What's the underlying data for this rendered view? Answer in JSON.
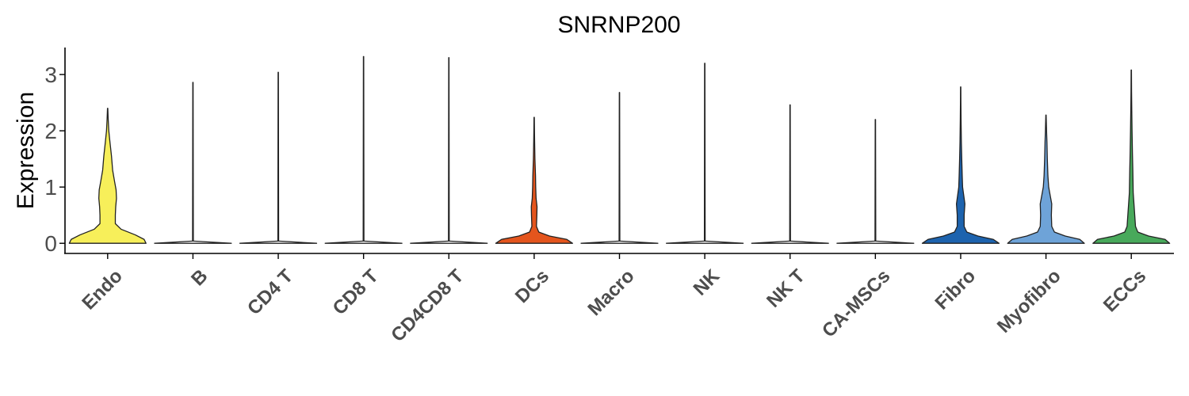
{
  "chart_data": {
    "type": "violin",
    "title": "SNRNP200",
    "xlabel": "",
    "ylabel": "Expression",
    "ylim": [
      -0.18,
      3.48
    ],
    "yticks": [
      "0",
      "1",
      "2",
      "3"
    ],
    "grid": false,
    "legend": "none",
    "categories": [
      "Endo",
      "B",
      "CD4 T",
      "CD8 T",
      "CD4CD8 T",
      "DCs",
      "Macro",
      "NK",
      "NK T",
      "CA-MSCs",
      "Fibro",
      "Myofibro",
      "ECCs"
    ],
    "colors": [
      "#f7ef5a",
      "#ffffff",
      "#ffffff",
      "#ffffff",
      "#ffffff",
      "#e4551d",
      "#ffffff",
      "#ffffff",
      "#ffffff",
      "#ffffff",
      "#1d63ae",
      "#6ea3d8",
      "#48a95b"
    ],
    "max_values": [
      2.4,
      2.86,
      3.04,
      3.32,
      3.3,
      2.24,
      2.68,
      3.2,
      2.46,
      2.2,
      2.78,
      2.28,
      3.08
    ],
    "violins": [
      {
        "name": "Endo",
        "profile": [
          [
            0,
            1.0
          ],
          [
            0.07,
            0.95
          ],
          [
            0.15,
            0.72
          ],
          [
            0.25,
            0.35
          ],
          [
            0.35,
            0.2
          ],
          [
            0.5,
            0.2
          ],
          [
            0.65,
            0.21
          ],
          [
            0.8,
            0.23
          ],
          [
            0.95,
            0.22
          ],
          [
            1.1,
            0.18
          ],
          [
            1.3,
            0.13
          ],
          [
            1.55,
            0.1
          ],
          [
            1.8,
            0.06
          ],
          [
            2.0,
            0.03
          ],
          [
            2.2,
            0.015
          ],
          [
            2.4,
            0.004
          ]
        ]
      },
      {
        "name": "B",
        "profile": [
          [
            0,
            1.0
          ],
          [
            0.04,
            0.01
          ],
          [
            2.86,
            0.004
          ]
        ]
      },
      {
        "name": "CD4 T",
        "profile": [
          [
            0,
            1.0
          ],
          [
            0.04,
            0.01
          ],
          [
            3.04,
            0.004
          ]
        ]
      },
      {
        "name": "CD8 T",
        "profile": [
          [
            0,
            1.0
          ],
          [
            0.04,
            0.01
          ],
          [
            3.32,
            0.004
          ]
        ]
      },
      {
        "name": "CD4CD8 T",
        "profile": [
          [
            0,
            1.0
          ],
          [
            0.04,
            0.01
          ],
          [
            3.3,
            0.004
          ]
        ]
      },
      {
        "name": "DCs",
        "profile": [
          [
            0,
            1.0
          ],
          [
            0.07,
            0.85
          ],
          [
            0.13,
            0.4
          ],
          [
            0.2,
            0.12
          ],
          [
            0.3,
            0.06
          ],
          [
            0.5,
            0.07
          ],
          [
            0.65,
            0.075
          ],
          [
            0.8,
            0.05
          ],
          [
            1.0,
            0.04
          ],
          [
            1.2,
            0.035
          ],
          [
            1.5,
            0.02
          ],
          [
            1.8,
            0.012
          ],
          [
            2.0,
            0.008
          ],
          [
            2.24,
            0.004
          ]
        ]
      },
      {
        "name": "Macro",
        "profile": [
          [
            0,
            1.0
          ],
          [
            0.04,
            0.01
          ],
          [
            2.68,
            0.004
          ]
        ]
      },
      {
        "name": "NK",
        "profile": [
          [
            0,
            1.0
          ],
          [
            0.04,
            0.01
          ],
          [
            3.2,
            0.004
          ]
        ]
      },
      {
        "name": "NK T",
        "profile": [
          [
            0,
            1.0
          ],
          [
            0.04,
            0.01
          ],
          [
            2.46,
            0.004
          ]
        ]
      },
      {
        "name": "CA-MSCs",
        "profile": [
          [
            0,
            1.0
          ],
          [
            0.04,
            0.01
          ],
          [
            2.2,
            0.004
          ]
        ]
      },
      {
        "name": "Fibro",
        "profile": [
          [
            0,
            1.0
          ],
          [
            0.07,
            0.85
          ],
          [
            0.13,
            0.45
          ],
          [
            0.2,
            0.16
          ],
          [
            0.3,
            0.09
          ],
          [
            0.5,
            0.09
          ],
          [
            0.7,
            0.11
          ],
          [
            0.85,
            0.08
          ],
          [
            1.0,
            0.05
          ],
          [
            1.2,
            0.04
          ],
          [
            1.5,
            0.028
          ],
          [
            1.8,
            0.018
          ],
          [
            2.2,
            0.01
          ],
          [
            2.5,
            0.006
          ],
          [
            2.78,
            0.004
          ]
        ]
      },
      {
        "name": "Myofibro",
        "profile": [
          [
            0,
            1.0
          ],
          [
            0.07,
            0.88
          ],
          [
            0.13,
            0.5
          ],
          [
            0.2,
            0.22
          ],
          [
            0.3,
            0.15
          ],
          [
            0.5,
            0.14
          ],
          [
            0.7,
            0.15
          ],
          [
            0.85,
            0.11
          ],
          [
            1.0,
            0.07
          ],
          [
            1.2,
            0.05
          ],
          [
            1.5,
            0.035
          ],
          [
            1.8,
            0.025
          ],
          [
            2.0,
            0.015
          ],
          [
            2.28,
            0.004
          ]
        ]
      },
      {
        "name": "ECCs",
        "profile": [
          [
            0,
            1.0
          ],
          [
            0.07,
            0.88
          ],
          [
            0.13,
            0.45
          ],
          [
            0.2,
            0.17
          ],
          [
            0.3,
            0.11
          ],
          [
            0.5,
            0.09
          ],
          [
            0.7,
            0.07
          ],
          [
            0.9,
            0.05
          ],
          [
            1.1,
            0.045
          ],
          [
            1.3,
            0.04
          ],
          [
            1.6,
            0.03
          ],
          [
            2.0,
            0.02
          ],
          [
            2.4,
            0.012
          ],
          [
            2.7,
            0.007
          ],
          [
            3.08,
            0.004
          ]
        ]
      }
    ]
  }
}
